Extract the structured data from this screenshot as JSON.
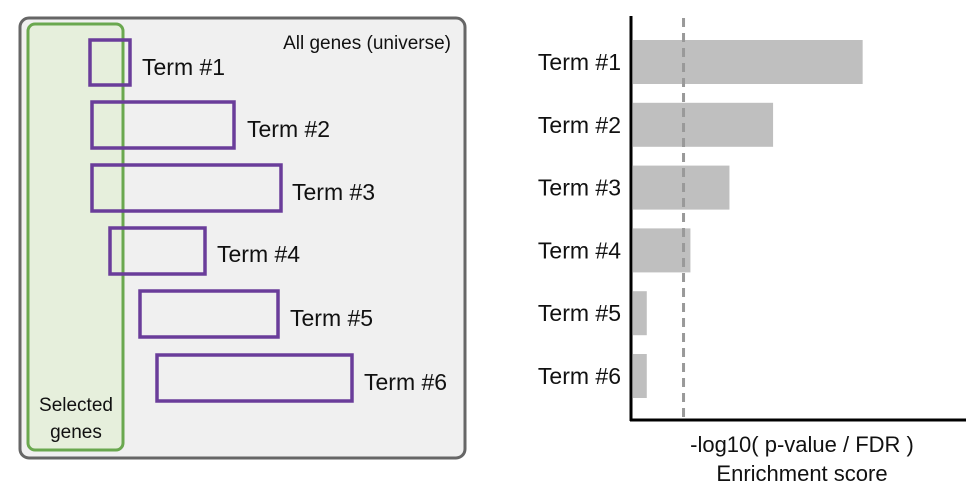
{
  "venn_panel": {
    "universe_label": "All genes (universe)",
    "selected_label_line1": "Selected",
    "selected_label_line2": "genes",
    "terms": [
      {
        "label": "Term #1"
      },
      {
        "label": "Term #2"
      },
      {
        "label": "Term #3"
      },
      {
        "label": "Term #4"
      },
      {
        "label": "Term #5"
      },
      {
        "label": "Term #6"
      }
    ],
    "colors": {
      "universe_fill": "#f0f0f0",
      "universe_stroke": "#666666",
      "selected_fill": "#e6efdc",
      "selected_stroke": "#6aa84f",
      "term_stroke": "#6a3d9a"
    }
  },
  "chart_data": {
    "type": "bar",
    "orientation": "horizontal",
    "categories": [
      "Term #1",
      "Term #2",
      "Term #3",
      "Term #4",
      "Term #5",
      "Term #6"
    ],
    "values": [
      10,
      6.1,
      4.2,
      2.5,
      0.6,
      0.6
    ],
    "threshold": 2.2,
    "xlim": [
      0,
      14.5
    ],
    "xlabel_line1": "-log10( p-value / FDR )",
    "xlabel_line2": "Enrichment score",
    "colors": {
      "bar": "#bfbfbf",
      "threshold": "#999999",
      "axis": "#000000"
    }
  }
}
